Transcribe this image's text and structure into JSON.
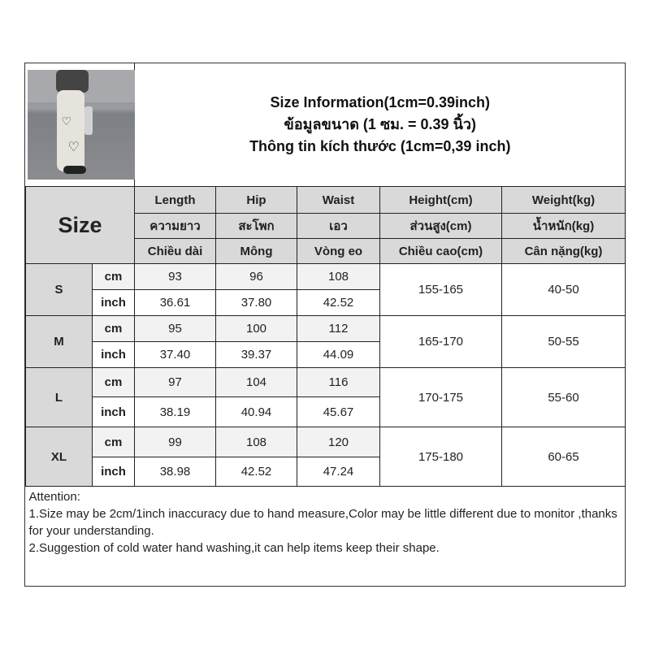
{
  "title_lines": [
    "Size Information(1cm=0.39inch)",
    "ข้อมูลขนาด (1 ซม. = 0.39 นิ้ว)",
    "Thông tin kích thước (1cm=0,39 inch)"
  ],
  "size_label": "Size",
  "headers": [
    [
      "Length",
      "Hip",
      "Waist",
      "Height(cm)",
      "Weight(kg)"
    ],
    [
      "ความยาว",
      "สะโพก",
      "เอว",
      "ส่วนสูง(cm)",
      "น้ำหนัก(kg)"
    ],
    [
      "Chiều dài",
      "Mông",
      "Vòng eo",
      "Chiều cao(cm)",
      "Cân nặng(kg)"
    ]
  ],
  "units": {
    "cm": "cm",
    "inch": "inch"
  },
  "rows": [
    {
      "size": "S",
      "cm": [
        "93",
        "96",
        "108"
      ],
      "inch": [
        "36.61",
        "37.80",
        "42.52"
      ],
      "height": "155-165",
      "weight": "40-50"
    },
    {
      "size": "M",
      "cm": [
        "95",
        "100",
        "112"
      ],
      "inch": [
        "37.40",
        "39.37",
        "44.09"
      ],
      "height": "165-170",
      "weight": "50-55"
    },
    {
      "size": "L",
      "cm": [
        "97",
        "104",
        "116"
      ],
      "inch": [
        "38.19",
        "40.94",
        "45.67"
      ],
      "height": "170-175",
      "weight": "55-60"
    },
    {
      "size": "XL",
      "cm": [
        "99",
        "108",
        "120"
      ],
      "inch": [
        "38.98",
        "42.52",
        "47.24"
      ],
      "height": "175-180",
      "weight": "60-65"
    }
  ],
  "attention": [
    "Attention:",
    "1.Size may be 2cm/1inch inaccuracy due to hand measure,Color may be little different due to monitor ,thanks for your understanding.",
    "2.Suggestion of cold water hand washing,it can help items keep their shape."
  ]
}
